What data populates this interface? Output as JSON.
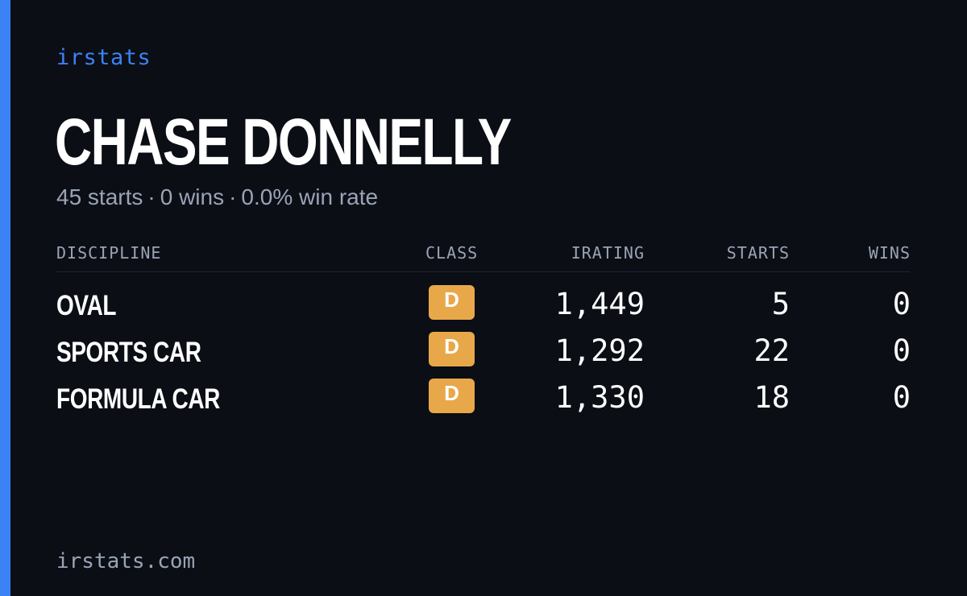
{
  "brand": "irstats",
  "driver": {
    "name": "CHASE DONNELLY",
    "starts": "45 starts",
    "wins": "0 wins",
    "win_rate": "0.0% win rate",
    "separator": "·"
  },
  "table": {
    "headers": {
      "discipline": "DISCIPLINE",
      "class": "CLASS",
      "irating": "IRATING",
      "starts": "STARTS",
      "wins": "WINS"
    },
    "rows": [
      {
        "discipline": "OVAL",
        "class": "D",
        "irating": "1,449",
        "starts": "5",
        "wins": "0"
      },
      {
        "discipline": "SPORTS CAR",
        "class": "D",
        "irating": "1,292",
        "starts": "22",
        "wins": "0"
      },
      {
        "discipline": "FORMULA CAR",
        "class": "D",
        "irating": "1,330",
        "starts": "18",
        "wins": "0"
      }
    ]
  },
  "footer": "irstats.com",
  "colors": {
    "accent": "#3b82f6",
    "background": "#0b0e15",
    "class_badge": "#e8a84a",
    "muted_text": "#9aa4b6"
  }
}
